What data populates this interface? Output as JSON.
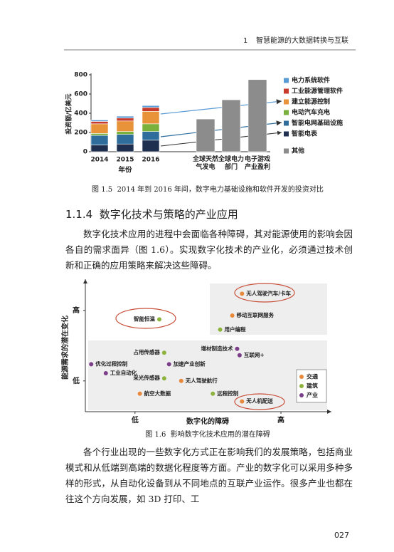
{
  "header": {
    "chapter": "1",
    "title": "智慧能源的大数据转换与互联"
  },
  "chart_data": [
    {
      "type": "bar",
      "stacked": true,
      "y_label": "投资额/亿美元",
      "x_label": "年份",
      "categories": [
        "2014",
        "2015",
        "2016",
        "全球天然气发电",
        "全球电力部门",
        "电子游戏产业盈利"
      ],
      "ylim": [
        0,
        800
      ],
      "yticks": [
        0,
        200,
        400,
        600,
        800
      ],
      "series": [
        {
          "name": "智能电表",
          "color": "#1f2f4f",
          "values": [
            70,
            80,
            120,
            null,
            null,
            null
          ]
        },
        {
          "name": "智能电网基础设施",
          "color": "#2f6e9c",
          "values": [
            100,
            100,
            90,
            null,
            null,
            null
          ]
        },
        {
          "name": "电动汽车充电",
          "color": "#7ab03c",
          "values": [
            20,
            30,
            80,
            null,
            null,
            null
          ]
        },
        {
          "name": "建立能源控制",
          "color": "#e8923a",
          "values": [
            100,
            110,
            130,
            null,
            null,
            null
          ]
        },
        {
          "name": "工业能源管理软件",
          "color": "#c83a2a",
          "values": [
            25,
            30,
            40,
            null,
            null,
            null
          ]
        },
        {
          "name": "电力系统软件",
          "color": "#5b9bd5",
          "values": [
            15,
            20,
            20,
            null,
            null,
            null
          ]
        },
        {
          "name": "其他",
          "color": "#8c8c8c",
          "values": [
            null,
            null,
            null,
            340,
            540,
            750
          ]
        }
      ]
    },
    {
      "type": "scatter",
      "x_label": "数字化的障碍",
      "y_label": "能源需求的潜在变化",
      "xlim": [
        0,
        10
      ],
      "ylim": [
        0,
        10
      ],
      "xticks": [
        {
          "value": 2.1,
          "label": "低"
        },
        {
          "value": 8.1,
          "label": "高"
        }
      ],
      "yticks": [
        {
          "value": 2.4,
          "label": "低"
        },
        {
          "value": 7.9,
          "label": "高"
        }
      ],
      "series": [
        {
          "name": "交通",
          "color": "#e8883a",
          "labels": [
            "无人驾驶汽车/卡车",
            "移动互联网服务",
            "无人驾驶航行",
            "航空大数据",
            "无人机配送"
          ],
          "x": [
            6.5,
            6.1,
            4.0,
            2.3,
            6.5
          ],
          "y": [
            9.2,
            7.5,
            2.4,
            1.4,
            0.8
          ]
        },
        {
          "name": "建筑",
          "color": "#8db33c",
          "labels": [
            "用户编程",
            "智能恒温",
            "占用传感器",
            "采光传感器",
            "远程控制"
          ],
          "x": [
            5.6,
            3.1,
            3.3,
            3.3,
            5.3
          ],
          "y": [
            6.4,
            7.2,
            4.6,
            2.6,
            1.4
          ]
        },
        {
          "name": "产业",
          "color": "#7b3f8a",
          "labels": [
            "增材制造技术",
            "互联网+",
            "优化过程控制",
            "加速产业创新",
            "工业自动化"
          ],
          "x": [
            6.3,
            6.4,
            0.3,
            3.5,
            0.9
          ],
          "y": [
            4.9,
            4.4,
            3.7,
            3.7,
            3.0
          ]
        }
      ]
    }
  ],
  "figures": [
    {
      "number": "图 1.5",
      "caption": "2014 年到 2016 年间，数字电力基础设施和软件开发的投资对比"
    },
    {
      "number": "图 1.6",
      "caption": "影响数字化技术应用的潜在障碍"
    }
  ],
  "section": {
    "number": "1.1.4",
    "title": "数字化技术与策略的产业应用"
  },
  "paragraphs": [
    "数字化技术应用的进程中会面临各种障碍，其对能源使用的影响会因各自的需求面异（图 1.6）。实现数字化技术的产业化，必须通过技术创新和正确的应用策略来解决这些障碍。",
    "各个行业出现的一些数字化方式正在影响我们的发展策略，包括商业模式和从低端到高端的数据化程度等方面。产业的数字化可以采用多种多样的形式，从自动化设备到从不同地点的互联产业运作。很多产业也都在往这个方向发展，如 3D 打印、工"
  ],
  "page_number": "027"
}
